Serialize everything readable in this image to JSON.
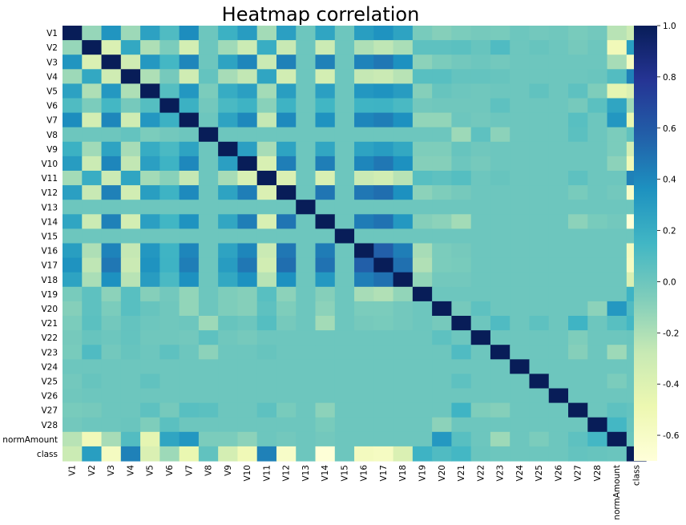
{
  "chart_data": {
    "type": "heatmap",
    "title": "Heatmap correlation",
    "xlabel": "",
    "ylabel": "",
    "labels": [
      "V1",
      "V2",
      "V3",
      "V4",
      "V5",
      "V6",
      "V7",
      "V8",
      "V9",
      "V10",
      "V11",
      "V12",
      "V13",
      "V14",
      "V15",
      "V16",
      "V17",
      "V18",
      "V19",
      "V20",
      "V21",
      "V22",
      "V23",
      "V24",
      "V25",
      "V26",
      "V27",
      "V28",
      "normAmount",
      "class"
    ],
    "colormap": "YlGnBu",
    "colormap_stops": [
      "#ffffd9",
      "#edf8b1",
      "#c7e9b4",
      "#7fcdbb",
      "#41b6c4",
      "#1d91c0",
      "#225ea8",
      "#253494",
      "#081d58"
    ],
    "vmin": -0.7,
    "vmax": 1.0,
    "colorbar_ticks": [
      "1.0",
      "0.8",
      "0.6",
      "0.4",
      "0.2",
      "0.0",
      "-0.2",
      "-0.4",
      "-0.6"
    ],
    "colorbar_tick_values": [
      1.0,
      0.8,
      0.6,
      0.4,
      0.2,
      0.0,
      -0.2,
      -0.4,
      -0.6
    ],
    "matrix": [
      [
        1.0,
        -0.13,
        0.34,
        -0.15,
        0.27,
        0.1,
        0.38,
        0.0,
        0.18,
        0.3,
        -0.17,
        0.28,
        0.0,
        0.25,
        0.0,
        0.29,
        0.35,
        0.26,
        -0.04,
        -0.08,
        -0.05,
        -0.03,
        -0.04,
        0.0,
        -0.02,
        -0.01,
        -0.04,
        -0.02,
        -0.23,
        -0.3
      ],
      [
        -0.13,
        1.0,
        -0.38,
        0.23,
        -0.2,
        -0.05,
        -0.34,
        0.0,
        -0.16,
        -0.3,
        0.2,
        -0.28,
        0.0,
        -0.3,
        0.0,
        -0.2,
        -0.25,
        -0.19,
        0.05,
        0.05,
        0.06,
        0.02,
        0.1,
        0.0,
        0.02,
        0.0,
        -0.03,
        0.0,
        -0.53,
        0.29
      ],
      [
        0.34,
        -0.38,
        1.0,
        -0.32,
        0.32,
        0.14,
        0.41,
        0.0,
        0.26,
        0.41,
        -0.29,
        0.43,
        0.0,
        0.43,
        0.0,
        0.42,
        0.47,
        0.36,
        -0.1,
        -0.05,
        -0.02,
        0.0,
        -0.02,
        0.0,
        0.0,
        0.0,
        0.0,
        0.0,
        -0.18,
        -0.57
      ],
      [
        -0.15,
        0.23,
        -0.32,
        1.0,
        -0.2,
        -0.03,
        -0.32,
        0.03,
        -0.18,
        -0.26,
        0.25,
        -0.33,
        0.0,
        -0.34,
        0.0,
        -0.27,
        -0.29,
        -0.23,
        0.07,
        0.07,
        0.03,
        0.03,
        0.02,
        0.0,
        0.0,
        0.0,
        0.0,
        0.01,
        0.09,
        0.43
      ],
      [
        0.27,
        -0.2,
        0.32,
        -0.2,
        1.0,
        0.08,
        0.33,
        -0.05,
        0.21,
        0.28,
        -0.17,
        0.29,
        0.0,
        0.28,
        0.0,
        0.33,
        0.35,
        0.3,
        -0.08,
        0.02,
        0.0,
        -0.01,
        0.0,
        0.0,
        0.04,
        0.0,
        0.05,
        -0.06,
        -0.44,
        -0.38
      ],
      [
        0.1,
        -0.05,
        0.14,
        -0.03,
        0.08,
        1.0,
        0.18,
        -0.02,
        0.12,
        0.17,
        -0.09,
        0.17,
        0.0,
        0.15,
        0.0,
        0.16,
        0.17,
        0.12,
        -0.02,
        -0.01,
        -0.01,
        -0.01,
        0.05,
        0.0,
        0.0,
        0.0,
        -0.03,
        0.06,
        0.25,
        -0.15
      ],
      [
        0.38,
        -0.34,
        0.41,
        -0.32,
        0.33,
        0.18,
        1.0,
        0.0,
        0.26,
        0.4,
        -0.27,
        0.39,
        0.0,
        0.35,
        0.0,
        0.41,
        0.44,
        0.36,
        -0.12,
        -0.12,
        0.0,
        -0.02,
        0.0,
        0.0,
        0.0,
        0.0,
        0.07,
        0.0,
        0.33,
        -0.47
      ],
      [
        0.0,
        0.0,
        0.0,
        0.03,
        -0.05,
        -0.02,
        0.0,
        1.0,
        0.0,
        0.0,
        0.0,
        0.0,
        0.0,
        0.0,
        0.0,
        0.0,
        0.0,
        0.0,
        0.0,
        0.0,
        -0.15,
        0.05,
        -0.1,
        0.0,
        0.0,
        0.0,
        0.06,
        0.0,
        -0.05,
        0.04
      ],
      [
        0.18,
        -0.16,
        0.26,
        -0.18,
        0.21,
        0.12,
        0.26,
        0.0,
        1.0,
        0.28,
        -0.18,
        0.26,
        0.0,
        0.24,
        0.0,
        0.26,
        0.3,
        0.23,
        -0.06,
        -0.06,
        0.02,
        -0.01,
        0.0,
        0.0,
        0.0,
        0.0,
        0.0,
        0.0,
        -0.05,
        -0.35
      ],
      [
        0.3,
        -0.3,
        0.41,
        -0.26,
        0.28,
        0.17,
        0.4,
        0.0,
        0.28,
        1.0,
        -0.37,
        0.44,
        0.0,
        0.44,
        0.0,
        0.41,
        0.47,
        0.36,
        -0.08,
        -0.08,
        0.0,
        -0.03,
        0.0,
        0.0,
        0.0,
        0.0,
        0.0,
        0.0,
        -0.1,
        -0.52
      ],
      [
        -0.17,
        0.2,
        -0.29,
        0.25,
        -0.17,
        -0.09,
        -0.27,
        0.0,
        -0.18,
        -0.37,
        1.0,
        -0.38,
        0.0,
        -0.37,
        0.0,
        -0.29,
        -0.33,
        -0.23,
        0.07,
        0.05,
        0.08,
        0.0,
        0.02,
        0.0,
        0.0,
        0.0,
        0.05,
        0.0,
        0.0,
        0.43
      ],
      [
        0.28,
        -0.28,
        0.43,
        -0.33,
        0.29,
        0.17,
        0.39,
        0.0,
        0.26,
        0.44,
        -0.38,
        1.0,
        0.0,
        0.48,
        0.0,
        0.47,
        0.51,
        0.36,
        -0.1,
        -0.06,
        -0.03,
        0.0,
        0.0,
        0.0,
        0.0,
        0.0,
        -0.04,
        0.0,
        -0.02,
        -0.61
      ],
      [
        0.0,
        0.0,
        0.0,
        0.0,
        0.0,
        0.0,
        0.0,
        0.0,
        0.0,
        0.0,
        0.0,
        0.0,
        1.0,
        0.0,
        0.0,
        0.0,
        0.0,
        0.0,
        0.0,
        0.0,
        0.0,
        0.0,
        0.0,
        0.0,
        0.0,
        0.0,
        0.0,
        0.0,
        0.0,
        0.0
      ],
      [
        0.25,
        -0.3,
        0.43,
        -0.34,
        0.28,
        0.15,
        0.35,
        0.0,
        0.24,
        0.44,
        -0.37,
        0.48,
        0.0,
        1.0,
        0.0,
        0.45,
        0.49,
        0.32,
        -0.08,
        -0.1,
        -0.17,
        0.0,
        0.0,
        0.0,
        0.0,
        0.0,
        -0.1,
        -0.04,
        -0.02,
        -0.69
      ],
      [
        0.0,
        0.0,
        0.0,
        0.0,
        0.0,
        0.0,
        0.0,
        0.0,
        0.0,
        0.0,
        0.0,
        0.0,
        0.0,
        0.0,
        1.0,
        0.0,
        0.0,
        0.0,
        0.0,
        0.0,
        0.0,
        0.0,
        0.0,
        0.0,
        0.0,
        0.0,
        0.0,
        0.0,
        0.0,
        0.0
      ],
      [
        0.29,
        -0.2,
        0.42,
        -0.27,
        0.33,
        0.16,
        0.41,
        0.0,
        0.26,
        0.41,
        -0.29,
        0.47,
        0.0,
        0.45,
        0.0,
        1.0,
        0.57,
        0.44,
        -0.18,
        -0.05,
        -0.03,
        0.0,
        0.0,
        0.0,
        0.0,
        0.0,
        0.0,
        0.0,
        0.0,
        -0.56
      ],
      [
        0.35,
        -0.25,
        0.47,
        -0.29,
        0.35,
        0.17,
        0.44,
        0.0,
        0.3,
        0.47,
        -0.33,
        0.51,
        0.0,
        0.49,
        0.0,
        0.57,
        1.0,
        0.5,
        -0.21,
        -0.05,
        -0.04,
        0.0,
        0.0,
        0.0,
        0.0,
        0.0,
        0.0,
        0.0,
        0.0,
        -0.58
      ],
      [
        0.26,
        -0.19,
        0.36,
        -0.23,
        0.3,
        0.12,
        0.36,
        0.0,
        0.23,
        0.36,
        -0.23,
        0.36,
        0.0,
        0.32,
        0.0,
        0.44,
        0.5,
        1.0,
        -0.12,
        -0.02,
        -0.02,
        0.0,
        0.0,
        0.0,
        0.0,
        0.0,
        0.0,
        0.0,
        0.0,
        -0.38
      ],
      [
        -0.04,
        0.05,
        -0.1,
        0.07,
        -0.08,
        -0.02,
        -0.12,
        0.0,
        -0.06,
        -0.08,
        0.07,
        -0.1,
        0.0,
        -0.08,
        0.0,
        -0.18,
        -0.21,
        -0.12,
        1.0,
        0.0,
        0.0,
        0.0,
        0.0,
        0.0,
        0.0,
        0.0,
        0.0,
        0.0,
        0.0,
        0.17
      ],
      [
        -0.08,
        0.05,
        -0.05,
        0.07,
        0.02,
        -0.01,
        -0.12,
        0.0,
        -0.06,
        -0.08,
        0.05,
        -0.06,
        0.0,
        -0.1,
        0.0,
        -0.05,
        -0.05,
        -0.02,
        0.0,
        1.0,
        -0.03,
        0.05,
        0.0,
        0.0,
        0.0,
        0.0,
        0.0,
        -0.1,
        0.32,
        0.1
      ],
      [
        -0.05,
        0.06,
        -0.02,
        0.03,
        0.0,
        -0.01,
        0.0,
        -0.15,
        0.02,
        0.0,
        0.08,
        -0.03,
        0.0,
        -0.17,
        0.0,
        -0.03,
        -0.04,
        -0.02,
        0.0,
        -0.03,
        1.0,
        0.0,
        0.1,
        0.0,
        0.05,
        0.0,
        0.16,
        0.0,
        0.07,
        0.14
      ],
      [
        -0.03,
        0.02,
        0.0,
        0.03,
        -0.01,
        -0.01,
        -0.02,
        0.05,
        -0.01,
        -0.03,
        0.0,
        0.0,
        0.0,
        0.0,
        0.0,
        0.0,
        0.0,
        0.0,
        0.0,
        0.05,
        0.0,
        1.0,
        0.0,
        0.0,
        0.0,
        0.0,
        -0.06,
        0.0,
        0.0,
        0.01
      ],
      [
        -0.04,
        0.1,
        -0.02,
        0.02,
        0.0,
        0.05,
        0.0,
        -0.1,
        0.0,
        0.0,
        0.02,
        0.0,
        0.0,
        0.0,
        0.0,
        0.0,
        0.0,
        0.0,
        0.0,
        0.0,
        0.1,
        0.0,
        1.0,
        0.0,
        0.0,
        0.0,
        -0.08,
        0.0,
        -0.15,
        0.0
      ],
      [
        0.0,
        0.0,
        0.0,
        0.0,
        0.0,
        0.0,
        0.0,
        0.0,
        0.0,
        0.0,
        0.0,
        0.0,
        0.0,
        0.0,
        0.0,
        0.0,
        0.0,
        0.0,
        0.0,
        0.0,
        0.0,
        0.0,
        0.0,
        1.0,
        0.0,
        0.0,
        0.0,
        0.0,
        0.0,
        0.0
      ],
      [
        -0.02,
        0.02,
        0.0,
        0.0,
        0.04,
        0.0,
        0.0,
        0.0,
        0.0,
        0.0,
        0.0,
        0.0,
        0.0,
        0.0,
        0.0,
        0.0,
        0.0,
        0.0,
        0.0,
        0.0,
        0.05,
        0.0,
        0.0,
        0.0,
        1.0,
        0.0,
        0.0,
        0.0,
        -0.05,
        0.0
      ],
      [
        -0.01,
        0.0,
        0.0,
        0.0,
        0.0,
        0.0,
        0.0,
        0.0,
        0.0,
        0.0,
        0.0,
        0.0,
        0.0,
        0.0,
        0.0,
        0.0,
        0.0,
        0.0,
        0.0,
        0.0,
        0.0,
        0.0,
        0.0,
        0.0,
        0.0,
        1.0,
        0.0,
        0.0,
        0.0,
        0.0
      ],
      [
        -0.04,
        -0.03,
        0.0,
        0.0,
        0.05,
        -0.03,
        0.07,
        0.06,
        0.0,
        0.0,
        0.05,
        -0.04,
        0.0,
        -0.1,
        0.0,
        0.0,
        0.0,
        0.0,
        0.0,
        0.0,
        0.16,
        -0.06,
        -0.08,
        0.0,
        0.0,
        0.0,
        1.0,
        0.0,
        0.05,
        0.03
      ],
      [
        -0.02,
        0.0,
        0.0,
        0.01,
        -0.06,
        0.06,
        0.0,
        0.0,
        0.0,
        0.0,
        0.0,
        0.0,
        0.0,
        -0.04,
        0.0,
        0.0,
        0.0,
        0.0,
        0.0,
        -0.1,
        0.0,
        0.0,
        0.0,
        0.0,
        0.0,
        0.0,
        0.0,
        1.0,
        0.14,
        0.02
      ],
      [
        -0.23,
        -0.53,
        -0.18,
        0.09,
        -0.44,
        0.25,
        0.33,
        -0.05,
        -0.05,
        -0.1,
        0.0,
        -0.02,
        0.0,
        -0.02,
        0.0,
        0.0,
        0.0,
        0.0,
        0.0,
        0.32,
        0.07,
        0.0,
        -0.15,
        0.0,
        -0.05,
        0.0,
        0.05,
        0.14,
        1.0,
        0.01
      ],
      [
        -0.3,
        0.29,
        -0.57,
        0.43,
        -0.38,
        -0.15,
        -0.47,
        0.04,
        -0.35,
        -0.52,
        0.43,
        -0.61,
        0.0,
        -0.69,
        0.0,
        -0.56,
        -0.58,
        -0.38,
        0.17,
        0.1,
        0.14,
        0.01,
        0.0,
        0.0,
        0.0,
        0.0,
        0.03,
        0.02,
        0.01,
        1.0
      ]
    ]
  }
}
